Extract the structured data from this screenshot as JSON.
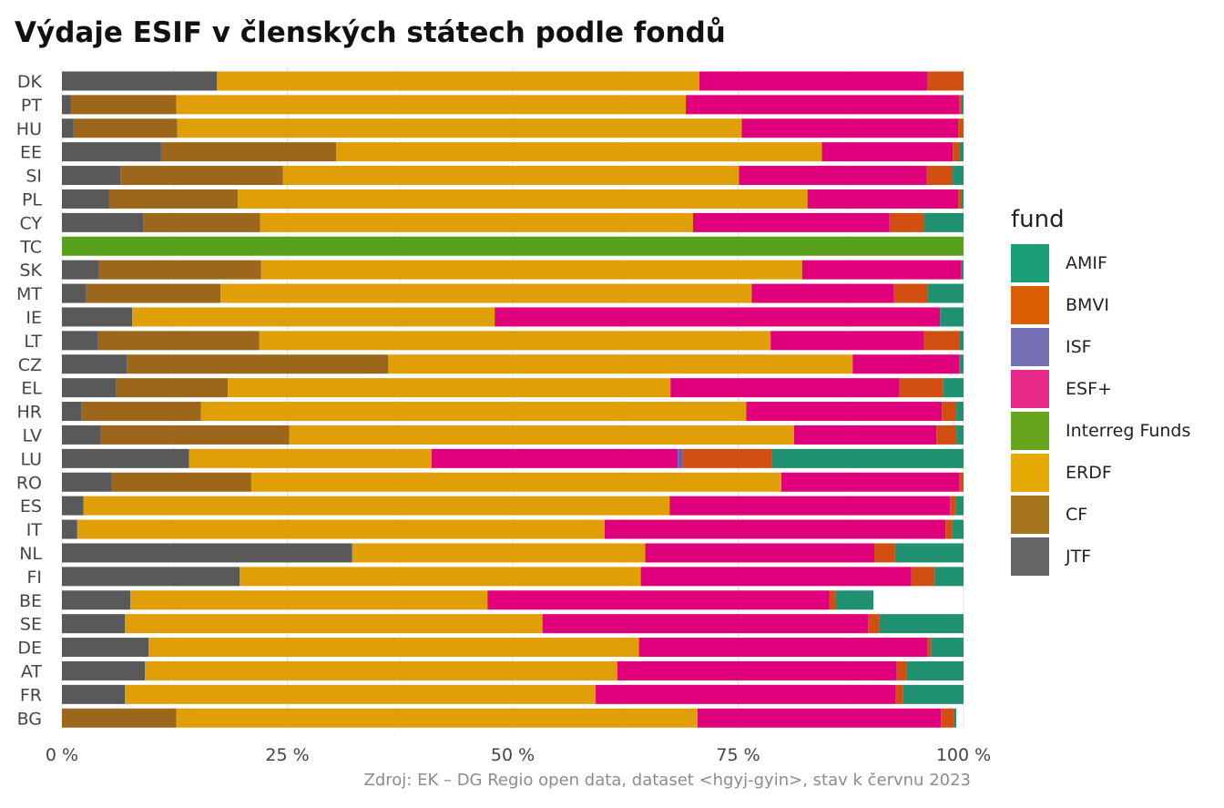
{
  "title": "Výdaje ESIF v členských státech podle fondů",
  "caption": "Zdroj: EK – DG Regio open data, dataset <hgyj-gyin>, stav k červnu 2023",
  "legend": {
    "title": "fund",
    "items": [
      {
        "label": "AMIF",
        "color": "#1b9e77"
      },
      {
        "label": "BMVI",
        "color": "#d95f02"
      },
      {
        "label": "ISF",
        "color": "#7570b3"
      },
      {
        "label": "ESF+",
        "color": "#e7298a"
      },
      {
        "label": "Interreg Funds",
        "color": "#66a61e"
      },
      {
        "label": "ERDF",
        "color": "#e6ab02"
      },
      {
        "label": "CF",
        "color": "#a6761d"
      },
      {
        "label": "JTF",
        "color": "#666666"
      }
    ]
  },
  "chart_data": {
    "type": "bar",
    "orientation": "horizontal",
    "stacked": "percent",
    "categories": [
      "DK",
      "PT",
      "HU",
      "EE",
      "SI",
      "PL",
      "CY",
      "TC",
      "SK",
      "MT",
      "IE",
      "LT",
      "CZ",
      "EL",
      "HR",
      "LV",
      "LU",
      "RO",
      "ES",
      "IT",
      "NL",
      "FI",
      "BE",
      "SE",
      "DE",
      "AT",
      "FR",
      "BG"
    ],
    "stack_order": [
      "JTF",
      "CF",
      "ERDF",
      "Interreg Funds",
      "ESF+",
      "ISF",
      "BMVI",
      "AMIF"
    ],
    "series": [
      {
        "name": "JTF",
        "color": "#595959",
        "values": [
          17.2,
          1.0,
          1.3,
          11.0,
          6.5,
          5.2,
          9.0,
          0,
          4.1,
          2.7,
          7.8,
          4.0,
          7.2,
          6.0,
          2.2,
          4.3,
          14.1,
          5.5,
          2.4,
          1.7,
          32.2,
          19.7,
          7.6,
          7.0,
          9.6,
          9.2,
          7.0,
          0
        ]
      },
      {
        "name": "CF",
        "color": "#9c661b",
        "values": [
          0,
          11.7,
          11.5,
          19.4,
          18.0,
          14.3,
          13.0,
          0,
          18.0,
          14.9,
          0,
          17.9,
          29.0,
          12.4,
          13.2,
          20.9,
          0,
          15.5,
          0,
          0,
          0,
          0,
          0,
          0,
          0,
          0,
          0,
          12.7
        ]
      },
      {
        "name": "ERDF",
        "color": "#e09e07",
        "values": [
          53.5,
          56.5,
          62.6,
          53.9,
          50.6,
          63.2,
          48.0,
          0,
          60.0,
          58.9,
          40.2,
          56.7,
          51.5,
          49.1,
          60.5,
          56.0,
          26.9,
          58.8,
          65.0,
          58.5,
          32.5,
          44.5,
          39.6,
          46.3,
          54.4,
          52.4,
          52.2,
          57.8
        ]
      },
      {
        "name": "Interreg Funds",
        "color": "#58a01c",
        "values": [
          0,
          0,
          0,
          0,
          0,
          0,
          0,
          100,
          0,
          0,
          0,
          0,
          0,
          0,
          0,
          0,
          0,
          0,
          0,
          0,
          0,
          0,
          0,
          0,
          0,
          0,
          0,
          0
        ]
      },
      {
        "name": "ESF+",
        "color": "#e0007c",
        "values": [
          25.3,
          30.3,
          24.0,
          14.5,
          20.8,
          16.7,
          21.8,
          0,
          17.6,
          15.8,
          49.4,
          17.0,
          11.8,
          25.4,
          21.7,
          15.8,
          27.3,
          19.7,
          31.1,
          37.8,
          25.4,
          30.0,
          37.9,
          36.1,
          32.0,
          31.0,
          33.3,
          27.0
        ]
      },
      {
        "name": "ISF",
        "color": "#6a5fae",
        "values": [
          0,
          0,
          0,
          0,
          0,
          0,
          0,
          0,
          0,
          0,
          0,
          0,
          0,
          0,
          0,
          0,
          0.5,
          0,
          0,
          0,
          0,
          0,
          0,
          0,
          0,
          0,
          0,
          0
        ]
      },
      {
        "name": "BMVI",
        "color": "#d14f10",
        "values": [
          4.0,
          0.2,
          0.5,
          0.7,
          2.9,
          0.4,
          3.8,
          0,
          0,
          3.7,
          0,
          3.9,
          0.1,
          4.8,
          1.6,
          2.2,
          9.9,
          0.4,
          0.6,
          0.7,
          2.3,
          2.6,
          0.7,
          1.3,
          0.4,
          1.1,
          0.8,
          1.4
        ]
      },
      {
        "name": "AMIF",
        "color": "#1f9170",
        "values": [
          0,
          0.3,
          0.1,
          0.5,
          1.2,
          0.2,
          4.4,
          0,
          0.3,
          4.0,
          2.6,
          0.5,
          0.4,
          2.3,
          0.8,
          0.8,
          21.3,
          0.1,
          0.9,
          1.3,
          7.6,
          3.2,
          4.2,
          9.3,
          3.6,
          6.3,
          6.7,
          0.3
        ]
      }
    ],
    "xlim": [
      0,
      100
    ],
    "xticks": [
      "0 %",
      "25 %",
      "50 %",
      "75 %",
      "100 %"
    ],
    "xtick_values": [
      0,
      25,
      50,
      75,
      100
    ],
    "grid": "vertical major + minor",
    "legend_position": "right"
  }
}
